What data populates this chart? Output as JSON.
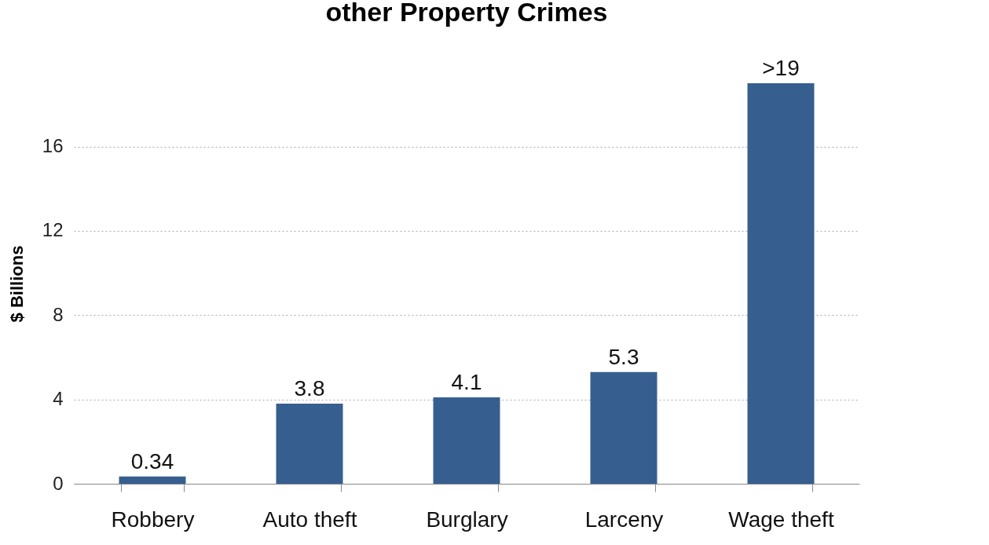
{
  "chart_data": {
    "type": "bar",
    "title": "other Property Crimes",
    "ylabel": "$ Billions",
    "categories": [
      "Robbery",
      "Auto theft",
      "Burglary",
      "Larceny",
      "Wage theft"
    ],
    "values": [
      0.34,
      3.8,
      4.1,
      5.3,
      19
    ],
    "value_labels": [
      "0.34",
      "3.8",
      "4.1",
      "5.3",
      ">19"
    ],
    "color": "#365f8f",
    "ylim": [
      0,
      19
    ],
    "yticks": [
      0,
      4,
      8,
      12,
      16
    ],
    "grid": "y"
  }
}
